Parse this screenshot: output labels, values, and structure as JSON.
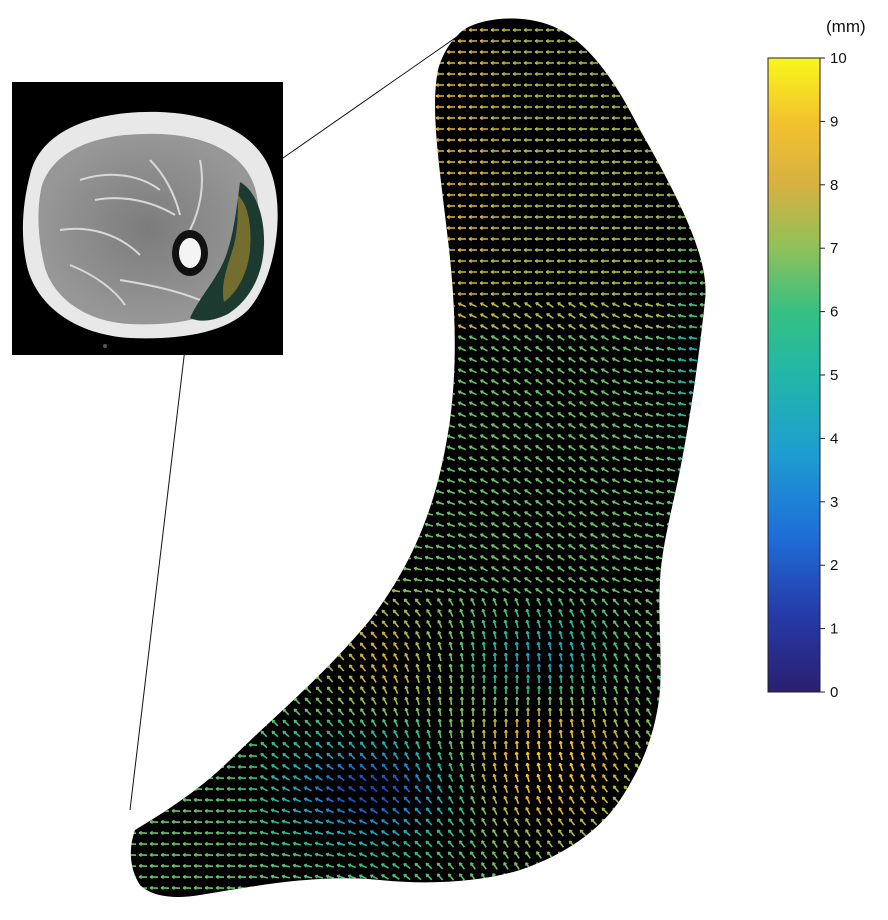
{
  "colorbar": {
    "unit": "(mm)",
    "min": 0,
    "max": 10,
    "ticks": [
      "0",
      "1",
      "2",
      "3",
      "4",
      "5",
      "6",
      "7",
      "8",
      "9",
      "10"
    ],
    "colormap": [
      "#2b1f6f",
      "#1f4fc4",
      "#1e8fd6",
      "#21b3b0",
      "#2fc08a",
      "#86c45a",
      "#c9b43e",
      "#f0b53c",
      "#f7d31c",
      "#f9f21a"
    ]
  },
  "figure": {
    "inset_description_colors": {
      "background": "#000000",
      "tissue_light": "#f0f0f0",
      "muscle": "#8a8a8a"
    }
  }
}
